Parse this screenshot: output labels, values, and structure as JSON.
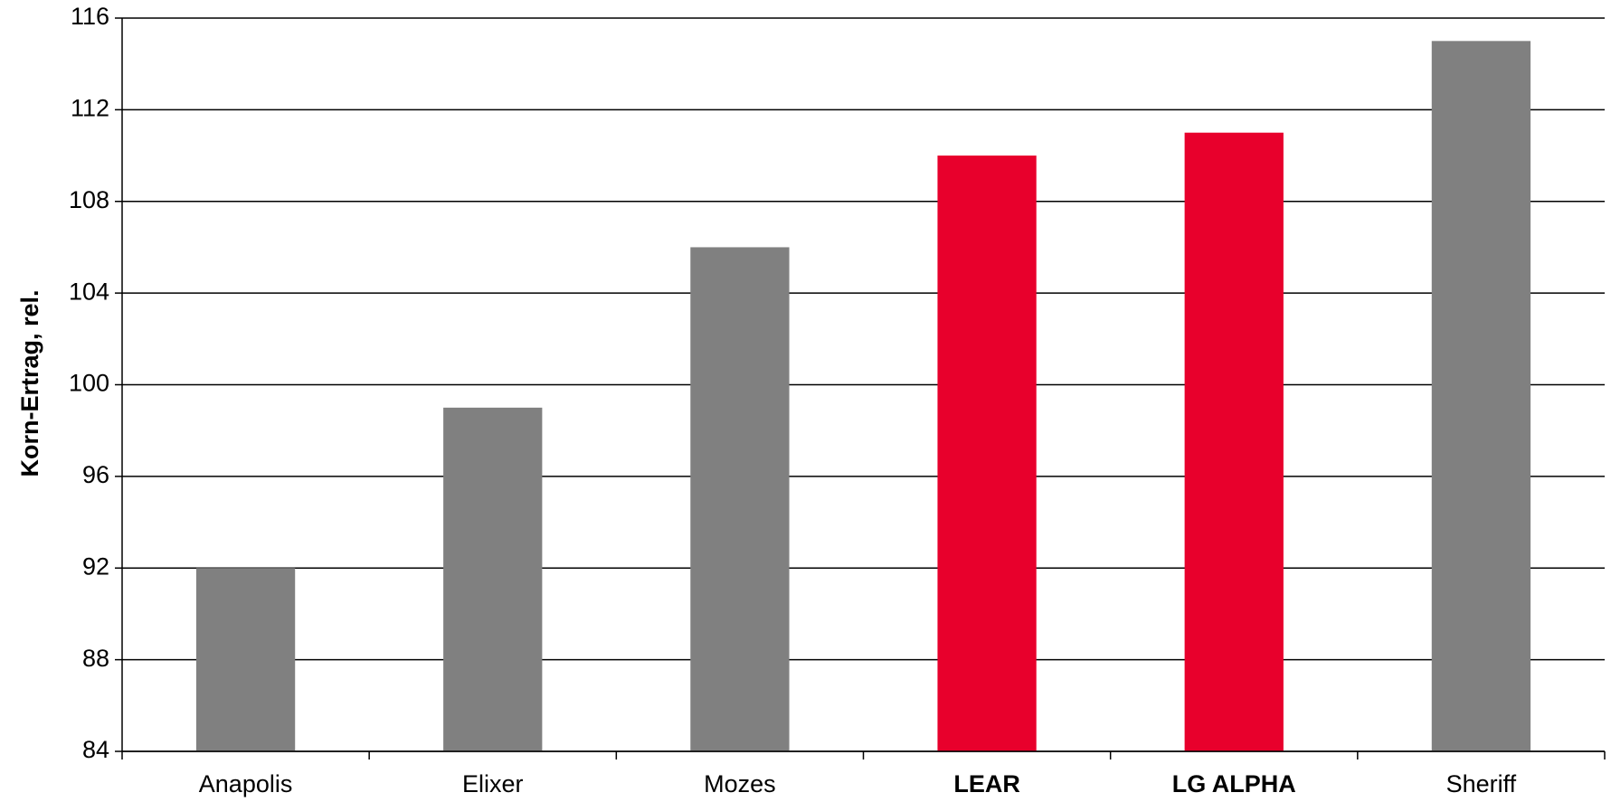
{
  "chart_data": {
    "type": "bar",
    "y_label": "Korn-Ertrag, rel.",
    "categories": [
      "Anapolis",
      "Elixer",
      "Mozes",
      "LEAR",
      "LG ALPHA",
      "Sheriff"
    ],
    "values": [
      92,
      99,
      106,
      110,
      111,
      115
    ],
    "colors": [
      "#808080",
      "#808080",
      "#808080",
      "#e8002c",
      "#e8002c",
      "#808080"
    ],
    "label_colors": [
      "#000000",
      "#000000",
      "#000000",
      "#e8002c",
      "#e8002c",
      "#000000"
    ],
    "ylim": [
      84,
      116
    ],
    "yticks": [
      84,
      88,
      92,
      96,
      100,
      104,
      108,
      112,
      116
    ],
    "grid": true
  }
}
